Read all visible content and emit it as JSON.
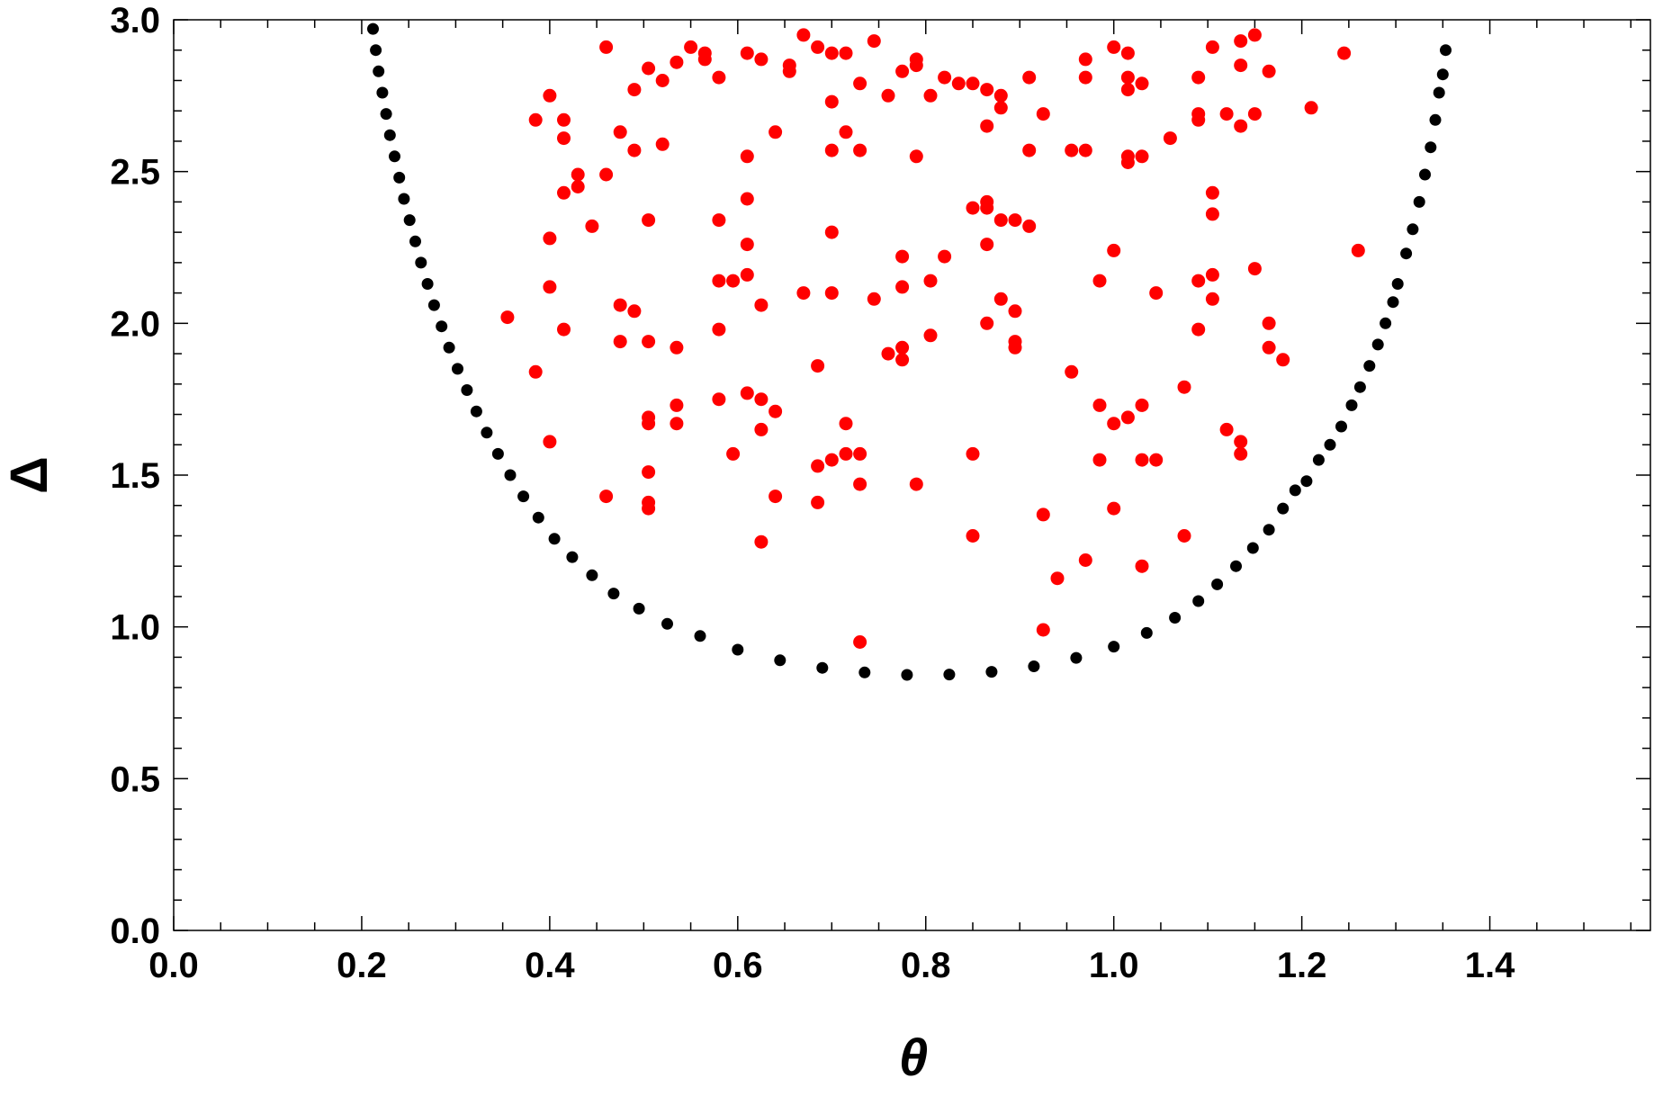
{
  "chart_data": {
    "type": "scatter",
    "title": "",
    "xlabel": "θ",
    "ylabel": "Δ",
    "xlim": [
      0,
      1.5708
    ],
    "ylim": [
      0,
      3.0
    ],
    "x_ticks": [
      "0.0",
      "0.2",
      "0.4",
      "0.6",
      "0.8",
      "1.0",
      "1.2",
      "1.4"
    ],
    "x_tick_values": [
      0,
      0.2,
      0.4,
      0.6,
      0.8,
      1.0,
      1.2,
      1.4
    ],
    "y_ticks": [
      "0.0",
      "0.5",
      "1.0",
      "1.5",
      "2.0",
      "2.5",
      "3.0"
    ],
    "y_tick_values": [
      0,
      0.5,
      1.0,
      1.5,
      2.0,
      2.5,
      3.0
    ],
    "grid": false,
    "legend": "none",
    "series": [
      {
        "color": "#000000",
        "marker": "circle",
        "points": [
          [
            0.212,
            2.97
          ],
          [
            0.215,
            2.9
          ],
          [
            0.218,
            2.83
          ],
          [
            0.222,
            2.76
          ],
          [
            0.226,
            2.69
          ],
          [
            0.23,
            2.62
          ],
          [
            0.235,
            2.55
          ],
          [
            0.24,
            2.48
          ],
          [
            0.245,
            2.41
          ],
          [
            0.251,
            2.34
          ],
          [
            0.257,
            2.27
          ],
          [
            0.263,
            2.2
          ],
          [
            0.27,
            2.13
          ],
          [
            0.277,
            2.06
          ],
          [
            0.285,
            1.99
          ],
          [
            0.293,
            1.92
          ],
          [
            0.302,
            1.85
          ],
          [
            0.312,
            1.78
          ],
          [
            0.322,
            1.71
          ],
          [
            0.333,
            1.64
          ],
          [
            0.345,
            1.57
          ],
          [
            0.358,
            1.5
          ],
          [
            0.372,
            1.43
          ],
          [
            0.388,
            1.36
          ],
          [
            0.405,
            1.29
          ],
          [
            0.424,
            1.23
          ],
          [
            0.445,
            1.17
          ],
          [
            0.468,
            1.11
          ],
          [
            0.495,
            1.06
          ],
          [
            0.525,
            1.01
          ],
          [
            0.56,
            0.97
          ],
          [
            0.6,
            0.925
          ],
          [
            0.645,
            0.89
          ],
          [
            0.69,
            0.865
          ],
          [
            0.735,
            0.85
          ],
          [
            0.78,
            0.842
          ],
          [
            0.825,
            0.843
          ],
          [
            0.87,
            0.852
          ],
          [
            0.915,
            0.87
          ],
          [
            0.96,
            0.898
          ],
          [
            1.0,
            0.935
          ],
          [
            1.035,
            0.98
          ],
          [
            1.065,
            1.03
          ],
          [
            1.09,
            1.085
          ],
          [
            1.11,
            1.14
          ],
          [
            1.13,
            1.2
          ],
          [
            1.148,
            1.26
          ],
          [
            1.165,
            1.32
          ],
          [
            1.18,
            1.39
          ],
          [
            1.193,
            1.45
          ],
          [
            1.205,
            1.48
          ],
          [
            1.218,
            1.55
          ],
          [
            1.23,
            1.6
          ],
          [
            1.242,
            1.66
          ],
          [
            1.253,
            1.73
          ],
          [
            1.262,
            1.79
          ],
          [
            1.272,
            1.86
          ],
          [
            1.281,
            1.93
          ],
          [
            1.289,
            2.0
          ],
          [
            1.297,
            2.07
          ],
          [
            1.302,
            2.13
          ],
          [
            1.311,
            2.23
          ],
          [
            1.318,
            2.31
          ],
          [
            1.325,
            2.4
          ],
          [
            1.331,
            2.49
          ],
          [
            1.337,
            2.58
          ],
          [
            1.342,
            2.67
          ],
          [
            1.346,
            2.76
          ],
          [
            1.35,
            2.82
          ],
          [
            1.353,
            2.9
          ]
        ]
      },
      {
        "color": "#ff0000",
        "marker": "circle",
        "points": [
          [
            0.355,
            2.02
          ],
          [
            0.385,
            1.84
          ],
          [
            0.385,
            2.67
          ],
          [
            0.4,
            2.75
          ],
          [
            0.4,
            2.28
          ],
          [
            0.4,
            2.12
          ],
          [
            0.4,
            1.61
          ],
          [
            0.415,
            2.67
          ],
          [
            0.415,
            2.61
          ],
          [
            0.415,
            2.43
          ],
          [
            0.415,
            1.98
          ],
          [
            0.43,
            2.49
          ],
          [
            0.43,
            2.45
          ],
          [
            0.445,
            2.32
          ],
          [
            0.46,
            2.91
          ],
          [
            0.46,
            2.49
          ],
          [
            0.46,
            1.43
          ],
          [
            0.475,
            2.63
          ],
          [
            0.475,
            2.06
          ],
          [
            0.475,
            1.94
          ],
          [
            0.49,
            2.77
          ],
          [
            0.49,
            2.57
          ],
          [
            0.49,
            2.04
          ],
          [
            0.505,
            2.84
          ],
          [
            0.505,
            2.34
          ],
          [
            0.505,
            1.94
          ],
          [
            0.505,
            1.69
          ],
          [
            0.505,
            1.67
          ],
          [
            0.505,
            1.51
          ],
          [
            0.505,
            1.41
          ],
          [
            0.505,
            1.39
          ],
          [
            0.52,
            2.8
          ],
          [
            0.52,
            2.59
          ],
          [
            0.535,
            2.86
          ],
          [
            0.535,
            1.92
          ],
          [
            0.535,
            1.73
          ],
          [
            0.535,
            1.67
          ],
          [
            0.55,
            2.91
          ],
          [
            0.565,
            2.89
          ],
          [
            0.565,
            2.87
          ],
          [
            0.58,
            2.81
          ],
          [
            0.58,
            2.34
          ],
          [
            0.58,
            2.14
          ],
          [
            0.58,
            1.98
          ],
          [
            0.58,
            1.75
          ],
          [
            0.595,
            2.14
          ],
          [
            0.595,
            1.57
          ],
          [
            0.61,
            2.89
          ],
          [
            0.61,
            2.55
          ],
          [
            0.61,
            2.41
          ],
          [
            0.61,
            2.26
          ],
          [
            0.61,
            2.16
          ],
          [
            0.61,
            1.77
          ],
          [
            0.625,
            2.87
          ],
          [
            0.625,
            2.06
          ],
          [
            0.625,
            1.75
          ],
          [
            0.625,
            1.65
          ],
          [
            0.625,
            1.28
          ],
          [
            0.64,
            2.63
          ],
          [
            0.64,
            1.71
          ],
          [
            0.64,
            1.43
          ],
          [
            0.655,
            2.85
          ],
          [
            0.655,
            2.83
          ],
          [
            0.67,
            2.95
          ],
          [
            0.67,
            2.1
          ],
          [
            0.685,
            2.91
          ],
          [
            0.685,
            1.86
          ],
          [
            0.685,
            1.53
          ],
          [
            0.685,
            1.41
          ],
          [
            0.7,
            2.89
          ],
          [
            0.7,
            2.73
          ],
          [
            0.7,
            2.57
          ],
          [
            0.7,
            2.3
          ],
          [
            0.7,
            2.1
          ],
          [
            0.7,
            1.55
          ],
          [
            0.715,
            2.89
          ],
          [
            0.715,
            2.63
          ],
          [
            0.715,
            1.57
          ],
          [
            0.715,
            1.67
          ],
          [
            0.73,
            2.79
          ],
          [
            0.73,
            2.57
          ],
          [
            0.73,
            1.57
          ],
          [
            0.73,
            1.47
          ],
          [
            0.73,
            0.95
          ],
          [
            0.745,
            2.93
          ],
          [
            0.745,
            2.08
          ],
          [
            0.76,
            2.75
          ],
          [
            0.76,
            1.9
          ],
          [
            0.775,
            2.83
          ],
          [
            0.775,
            2.22
          ],
          [
            0.775,
            2.12
          ],
          [
            0.775,
            1.92
          ],
          [
            0.775,
            1.88
          ],
          [
            0.79,
            2.87
          ],
          [
            0.79,
            2.85
          ],
          [
            0.79,
            2.55
          ],
          [
            0.79,
            1.47
          ],
          [
            0.805,
            2.75
          ],
          [
            0.805,
            2.14
          ],
          [
            0.805,
            1.96
          ],
          [
            0.82,
            2.81
          ],
          [
            0.82,
            2.22
          ],
          [
            0.835,
            2.79
          ],
          [
            0.85,
            2.79
          ],
          [
            0.85,
            2.38
          ],
          [
            0.85,
            1.57
          ],
          [
            0.85,
            1.3
          ],
          [
            0.865,
            2.77
          ],
          [
            0.865,
            2.65
          ],
          [
            0.865,
            2.4
          ],
          [
            0.865,
            2.38
          ],
          [
            0.865,
            2.26
          ],
          [
            0.865,
            2.0
          ],
          [
            0.88,
            2.75
          ],
          [
            0.88,
            2.71
          ],
          [
            0.88,
            2.34
          ],
          [
            0.88,
            2.08
          ],
          [
            0.895,
            2.34
          ],
          [
            0.895,
            2.04
          ],
          [
            0.895,
            1.94
          ],
          [
            0.895,
            1.92
          ],
          [
            0.91,
            2.81
          ],
          [
            0.91,
            2.57
          ],
          [
            0.91,
            2.32
          ],
          [
            0.925,
            2.69
          ],
          [
            0.925,
            1.37
          ],
          [
            0.925,
            0.99
          ],
          [
            0.94,
            1.16
          ],
          [
            0.955,
            2.57
          ],
          [
            0.955,
            1.84
          ],
          [
            0.97,
            2.87
          ],
          [
            0.97,
            2.81
          ],
          [
            0.97,
            2.57
          ],
          [
            0.97,
            1.22
          ],
          [
            0.985,
            2.14
          ],
          [
            0.985,
            1.73
          ],
          [
            0.985,
            1.55
          ],
          [
            1.0,
            2.91
          ],
          [
            1.0,
            2.24
          ],
          [
            1.0,
            1.67
          ],
          [
            1.0,
            1.39
          ],
          [
            1.015,
            2.89
          ],
          [
            1.015,
            2.81
          ],
          [
            1.015,
            2.77
          ],
          [
            1.015,
            2.55
          ],
          [
            1.015,
            2.53
          ],
          [
            1.015,
            1.69
          ],
          [
            1.03,
            2.79
          ],
          [
            1.03,
            2.55
          ],
          [
            1.03,
            1.73
          ],
          [
            1.03,
            1.55
          ],
          [
            1.03,
            1.2
          ],
          [
            1.045,
            2.1
          ],
          [
            1.045,
            1.55
          ],
          [
            1.06,
            2.61
          ],
          [
            1.075,
            1.79
          ],
          [
            1.075,
            1.3
          ],
          [
            1.09,
            2.81
          ],
          [
            1.09,
            2.69
          ],
          [
            1.09,
            2.67
          ],
          [
            1.09,
            2.14
          ],
          [
            1.09,
            1.98
          ],
          [
            1.105,
            2.91
          ],
          [
            1.105,
            2.43
          ],
          [
            1.105,
            2.36
          ],
          [
            1.105,
            2.16
          ],
          [
            1.105,
            2.08
          ],
          [
            1.12,
            2.69
          ],
          [
            1.12,
            1.65
          ],
          [
            1.135,
            2.93
          ],
          [
            1.135,
            2.85
          ],
          [
            1.135,
            2.65
          ],
          [
            1.135,
            1.61
          ],
          [
            1.135,
            1.57
          ],
          [
            1.15,
            2.95
          ],
          [
            1.15,
            2.69
          ],
          [
            1.15,
            2.18
          ],
          [
            1.165,
            2.83
          ],
          [
            1.165,
            2.0
          ],
          [
            1.165,
            1.92
          ],
          [
            1.18,
            1.88
          ],
          [
            1.21,
            2.71
          ],
          [
            1.245,
            2.89
          ],
          [
            1.26,
            2.24
          ]
        ]
      }
    ]
  }
}
